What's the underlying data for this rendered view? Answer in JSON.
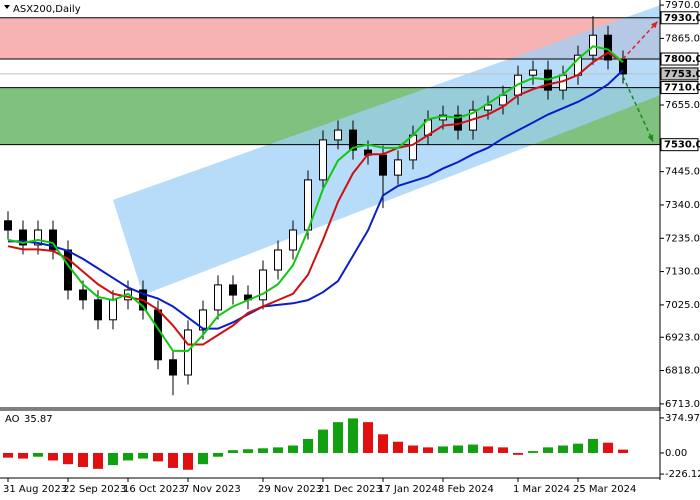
{
  "chart_data": {
    "type": "candlestick",
    "title": "ASX200,Daily",
    "categories": [
      "31 Aug 2023",
      null,
      null,
      null,
      "22 Sep 2023",
      null,
      null,
      null,
      "16 Oct 2023",
      null,
      null,
      null,
      "7 Nov 2023",
      null,
      null,
      null,
      null,
      "29 Nov 2023",
      null,
      null,
      null,
      "21 Dec 2023",
      null,
      null,
      null,
      "17 Jan 2024",
      null,
      null,
      null,
      "8 Feb 2024",
      null,
      null,
      null,
      null,
      "1 Mar 2024",
      null,
      null,
      null,
      "25 Mar 2024",
      null,
      null,
      null
    ],
    "open": [
      7290,
      7261,
      7214,
      7261,
      7198,
      7072,
      7041,
      6978,
      7041,
      7072,
      7009,
      6852,
      6804,
      6946,
      7009,
      7088,
      7056,
      7041,
      7135,
      7198,
      7261,
      7419,
      7545,
      7576,
      7513,
      7497,
      7434,
      7482,
      7560,
      7608,
      7623,
      7576,
      7639,
      7655,
      7686,
      7749,
      7765,
      7702,
      7749,
      7812,
      7875,
      7797
    ],
    "high": [
      7320,
      7291,
      7291,
      7291,
      7228,
      7102,
      7071,
      7071,
      7102,
      7102,
      7039,
      6882,
      6976,
      7039,
      7118,
      7118,
      7086,
      7165,
      7228,
      7291,
      7449,
      7575,
      7606,
      7606,
      7543,
      7527,
      7512,
      7590,
      7638,
      7653,
      7653,
      7669,
      7685,
      7716,
      7779,
      7795,
      7795,
      7779,
      7842,
      7935,
      7905,
      7827
    ],
    "low": [
      7231,
      7184,
      7184,
      7168,
      7042,
      7011,
      6948,
      6948,
      7011,
      6979,
      6822,
      6740,
      6774,
      6916,
      6979,
      7026,
      7011,
      7011,
      7105,
      7168,
      7231,
      7389,
      7515,
      7483,
      7467,
      7330,
      7404,
      7452,
      7530,
      7578,
      7546,
      7546,
      7609,
      7625,
      7656,
      7719,
      7672,
      7672,
      7719,
      7782,
      7767,
      7723
    ],
    "close": [
      7261,
      7214,
      7261,
      7198,
      7072,
      7041,
      6978,
      7041,
      7072,
      7009,
      6852,
      6804,
      6946,
      7009,
      7088,
      7056,
      7041,
      7135,
      7198,
      7261,
      7419,
      7545,
      7576,
      7513,
      7497,
      7434,
      7482,
      7560,
      7608,
      7623,
      7576,
      7639,
      7655,
      7686,
      7749,
      7765,
      7702,
      7749,
      7812,
      7875,
      7797,
      7753
    ],
    "lines": [
      {
        "color": "#0a1ec8",
        "values": [
          7225,
          7225,
          7220,
          7210,
          7195,
          7170,
          7140,
          7110,
          7080,
          7060,
          7045,
          7020,
          6985,
          6950,
          6950,
          6970,
          6995,
          7020,
          7025,
          7030,
          7040,
          7065,
          7100,
          7180,
          7260,
          7370,
          7400,
          7415,
          7430,
          7455,
          7475,
          7500,
          7520,
          7550,
          7575,
          7600,
          7625,
          7645,
          7665,
          7690,
          7720,
          7765
        ]
      },
      {
        "color": "#d01010",
        "values": [
          7210,
          7200,
          7200,
          7195,
          7170,
          7130,
          7090,
          7060,
          7050,
          7040,
          7010,
          6960,
          6900,
          6900,
          6930,
          6960,
          7000,
          7020,
          7040,
          7060,
          7120,
          7230,
          7350,
          7440,
          7500,
          7500,
          7520,
          7530,
          7560,
          7590,
          7595,
          7610,
          7625,
          7650,
          7685,
          7705,
          7720,
          7730,
          7750,
          7790,
          7820,
          7790
        ]
      },
      {
        "color": "#10c810",
        "values": [
          7230,
          7220,
          7230,
          7220,
          7150,
          7090,
          7050,
          7040,
          7060,
          7020,
          6950,
          6880,
          6880,
          6930,
          6990,
          7020,
          7040,
          7060,
          7090,
          7150,
          7260,
          7390,
          7480,
          7520,
          7530,
          7520,
          7520,
          7560,
          7610,
          7620,
          7615,
          7630,
          7660,
          7690,
          7720,
          7740,
          7735,
          7750,
          7800,
          7840,
          7830,
          7790
        ]
      }
    ],
    "ylim": [
      6700,
      7986
    ],
    "yticks": [
      {
        "value": 7970,
        "label": "7970.0"
      },
      {
        "value": 7865,
        "label": "7865.0"
      },
      {
        "value": 7655,
        "label": "7655.0"
      },
      {
        "value": 7445,
        "label": "7445.0"
      },
      {
        "value": 7340,
        "label": "7340.0"
      },
      {
        "value": 7235,
        "label": "7235.0"
      },
      {
        "value": 7130,
        "label": "7130.0"
      },
      {
        "value": 7025,
        "label": "7025.0"
      },
      {
        "value": 6923,
        "label": "6923.0"
      },
      {
        "value": 6818,
        "label": "6818.0"
      },
      {
        "value": 6713,
        "label": "6713.0"
      }
    ],
    "zones": [
      {
        "from": 7930,
        "to": 7800,
        "color": "#f7b3b3"
      },
      {
        "from": 7710,
        "to": 7530,
        "color": "#7fc17f"
      }
    ],
    "channel": {
      "color": "#9fd0f7",
      "upper": {
        "x": [
          7,
          43.5
        ],
        "values": [
          7356,
          7970
        ]
      },
      "lower": {
        "x": [
          9,
          43.5
        ],
        "values": [
          7056,
          7686
        ]
      }
    },
    "forecasts": [
      {
        "color": "#e02020",
        "x": [
          41,
          43.3
        ],
        "values": [
          7800,
          7918
        ]
      },
      {
        "color": "#1a8a1a",
        "x": [
          41,
          43
        ],
        "values": [
          7745,
          7540
        ]
      }
    ],
    "levels": [
      {
        "value": 7930,
        "label": "7930.0",
        "fill": "#ffffff",
        "line": "#000000"
      },
      {
        "value": 7800,
        "label": "7800.0",
        "fill": "#ffffff",
        "line": "#000000"
      },
      {
        "value": 7753,
        "label": "7753.0",
        "fill": "#c0c0c0",
        "line": "#c0c0c0"
      },
      {
        "value": 7710,
        "label": "7710.0",
        "fill": "#ffffff",
        "line": "#000000"
      },
      {
        "value": 7530,
        "label": "7530.0",
        "fill": "#ffffff",
        "line": "#000000"
      }
    ],
    "ao": {
      "name": "AO",
      "up_color": "#10a010",
      "down_color": "#e01010",
      "values": [
        -50,
        -60,
        -40,
        -80,
        -120,
        -150,
        -170,
        -130,
        -80,
        -60,
        -90,
        -160,
        -180,
        -120,
        -40,
        30,
        40,
        50,
        60,
        80,
        150,
        250,
        330,
        370,
        330,
        200,
        120,
        80,
        60,
        70,
        80,
        90,
        70,
        60,
        -20,
        20,
        60,
        80,
        100,
        150,
        110,
        35.87
      ],
      "ylim": [
        -268,
        460
      ],
      "yticks": [
        374.97,
        {
          "value": 0,
          "label": "0.00"
        },
        -226.12
      ]
    }
  }
}
